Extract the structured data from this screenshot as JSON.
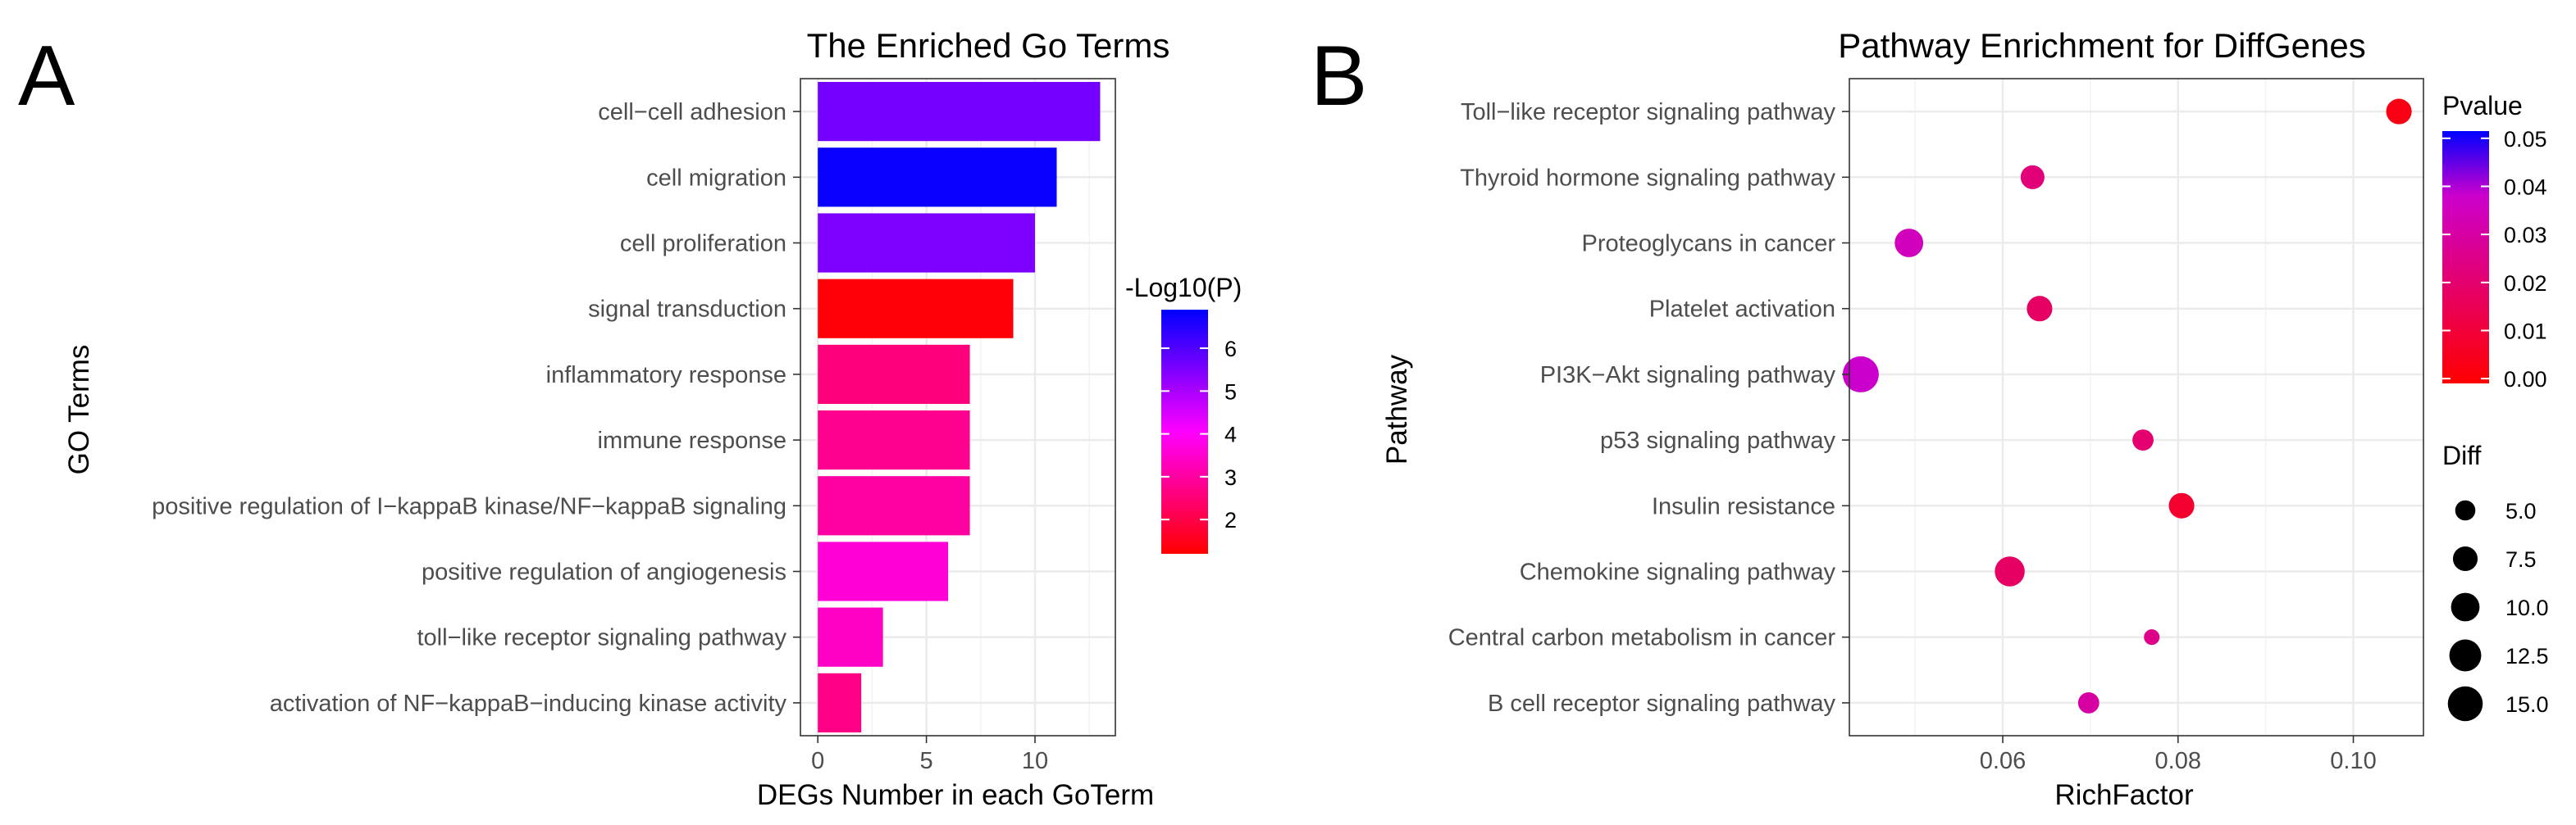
{
  "panels": {
    "a_label": "A",
    "b_label": "B"
  },
  "chart_data": [
    {
      "type": "bar",
      "orientation": "horizontal",
      "title": "The Enriched Go Terms",
      "xlabel": "DEGs Number in each GoTerm",
      "ylabel": "GO Terms",
      "xlim": [
        -0.8,
        13.7
      ],
      "xticks": [
        0,
        5,
        10
      ],
      "categories": [
        "cell−cell adhesion",
        "cell migration",
        "cell proliferation",
        "signal transduction",
        "inflammatory response",
        "immune response",
        "positive regulation of I−kappaB kinase/NF−kappaB signaling",
        "positive regulation of angiogenesis",
        "toll−like receptor signaling pathway",
        "activation of NF−kappaB−inducing kinase activity"
      ],
      "values": [
        13,
        11,
        10,
        9,
        7,
        7,
        7,
        6,
        3,
        2
      ],
      "color_values": [
        5.6,
        6.8,
        5.5,
        1.3,
        2.6,
        2.8,
        3.0,
        3.6,
        3.4,
        2.7
      ],
      "legend": {
        "title": "-Log10(P)",
        "range": [
          1.2,
          6.9
        ],
        "ticks": [
          2,
          3,
          4,
          5,
          6
        ],
        "low_color": "#ff0000",
        "mid_color": "#ff00ff",
        "high_color": "#0000ff",
        "mid_value": 4.05
      }
    },
    {
      "type": "scatter",
      "title": "Pathway Enrichment for DiffGenes",
      "xlabel": "RichFactor",
      "ylabel": "Pathway",
      "xlim": [
        0.0425,
        0.108
      ],
      "xticks": [
        0.06,
        0.08,
        0.1
      ],
      "xtick_labels": [
        "0.06",
        "0.08",
        "0.10"
      ],
      "categories": [
        "Toll−like receptor signaling pathway",
        "Thyroid hormone signaling pathway",
        "Proteoglycans in cancer",
        "Platelet activation",
        "PI3K−Akt signaling pathway",
        "p53 signaling pathway",
        "Insulin resistance",
        "Chemokine signaling pathway",
        "Central carbon metabolism in cancer",
        "B cell receptor signaling pathway"
      ],
      "x": [
        0.1052,
        0.0634,
        0.0493,
        0.0642,
        0.0438,
        0.076,
        0.0804,
        0.0608,
        0.077,
        0.0698
      ],
      "diff": [
        8,
        7,
        10,
        8,
        16,
        5.5,
        8,
        11,
        3,
        5.5
      ],
      "pvalue": [
        0.003,
        0.022,
        0.035,
        0.018,
        0.038,
        0.02,
        0.008,
        0.018,
        0.025,
        0.03
      ],
      "color_legend": {
        "title": "Pvalue",
        "range": [
          -0.001,
          0.0515
        ],
        "ticks": [
          0.0,
          0.01,
          0.02,
          0.03,
          0.04,
          0.05
        ],
        "tick_labels": [
          "0.00",
          "0.01",
          "0.02",
          "0.03",
          "0.04",
          "0.05"
        ],
        "low_color": "#ff0000",
        "mid_color": "#cc00cc",
        "high_color": "#0000ff",
        "mid_value": 0.038
      },
      "size_legend": {
        "title": "Diff",
        "values": [
          5.0,
          7.5,
          10.0,
          12.5,
          15.0
        ],
        "labels": [
          "5.0",
          "7.5",
          "10.0",
          "12.5",
          "15.0"
        ]
      }
    }
  ]
}
